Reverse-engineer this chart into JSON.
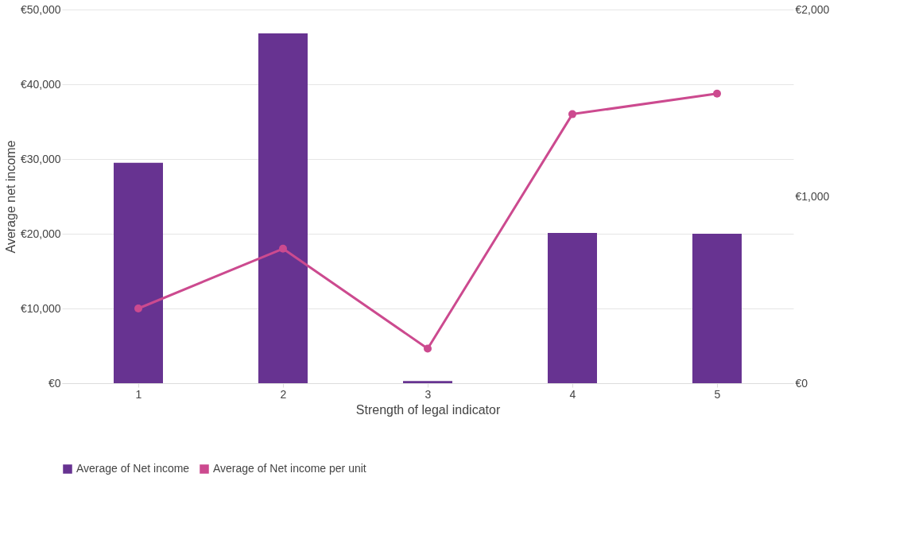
{
  "chart_data": {
    "type": "bar",
    "xlabel": "Strength of legal indicator",
    "ylabel": "Average net income",
    "categories": [
      "1",
      "2",
      "3",
      "4",
      "5"
    ],
    "series": [
      {
        "name": "Average of Net income",
        "color": "#673391",
        "values": [
          29500,
          46800,
          300,
          20100,
          20000
        ]
      },
      {
        "name": "Average of Net income per unit",
        "type": "line",
        "axis": "y2",
        "color": "#cc4a8f",
        "marker": "circle",
        "values": [
          400,
          720,
          185,
          1440,
          1550
        ]
      }
    ],
    "ylim": [
      0,
      50000
    ],
    "yticks": [
      {
        "value": 0,
        "label": "€0"
      },
      {
        "value": 10000,
        "label": "€10,000"
      },
      {
        "value": 20000,
        "label": "€20,000"
      },
      {
        "value": 30000,
        "label": "€30,000"
      },
      {
        "value": 40000,
        "label": "€40,000"
      },
      {
        "value": 50000,
        "label": "€50,000"
      }
    ],
    "y2lim": [
      0,
      2000
    ],
    "y2ticks": [
      {
        "value": 0,
        "label": "€0"
      },
      {
        "value": 1000,
        "label": "€1,000"
      },
      {
        "value": 2000,
        "label": "€2,000"
      }
    ],
    "grid": "y",
    "legend": "bottom"
  }
}
